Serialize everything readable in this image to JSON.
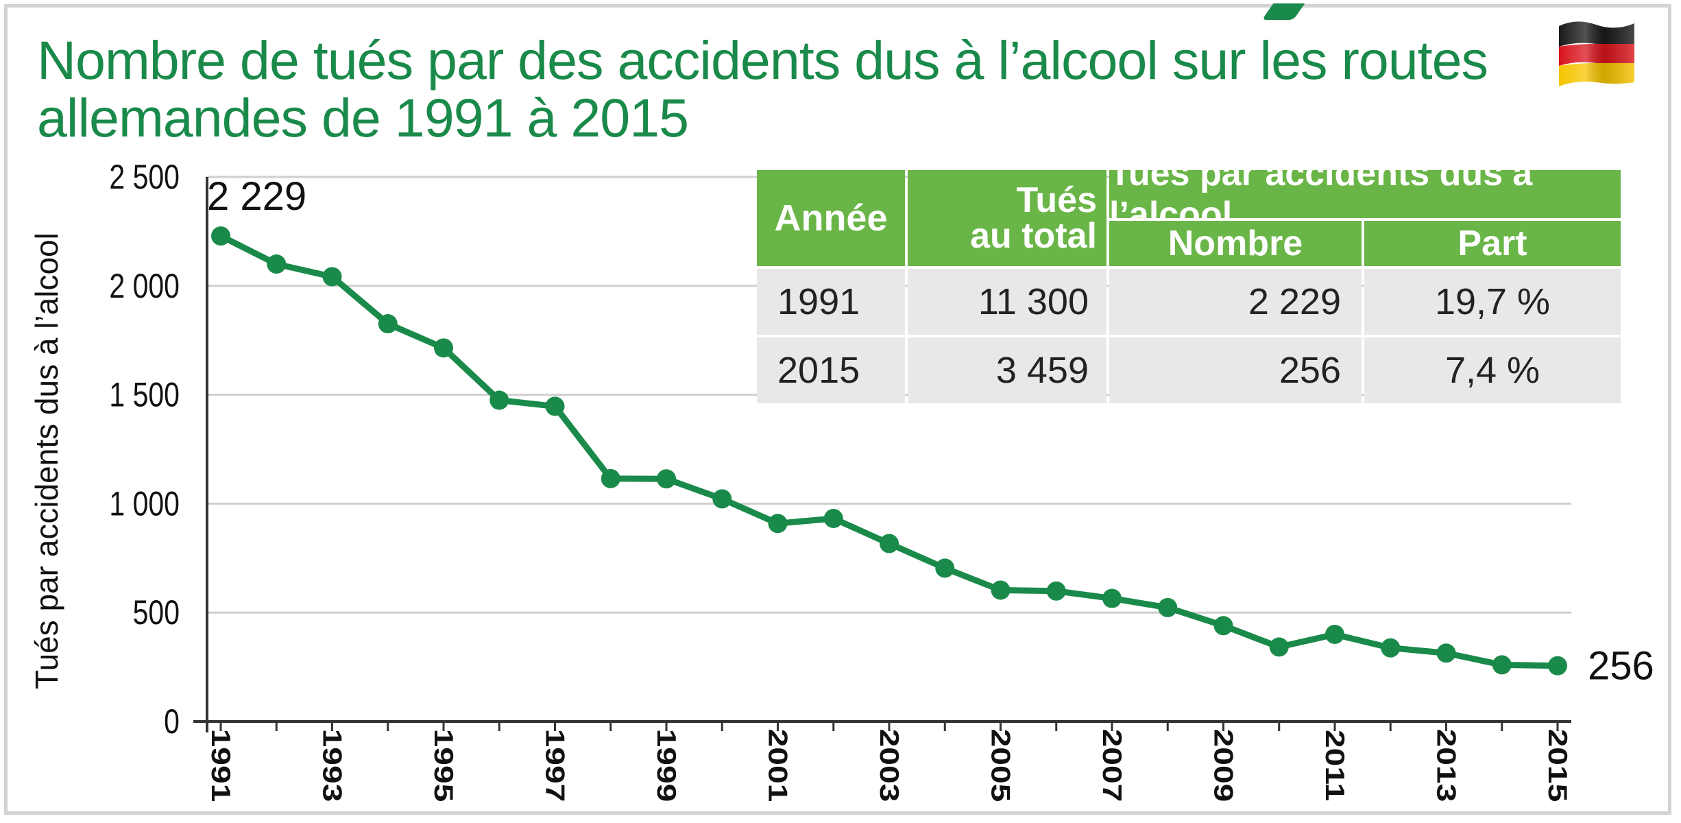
{
  "title": {
    "line1": "Nombre de tués par des accidents dus à l’alcool sur les routes",
    "line2": "allemandes de 1991 à 2015"
  },
  "flag_icon": "germany-flag-icon",
  "colors": {
    "line": "#1a8a4a",
    "title": "#1a8a4a",
    "table_header": "#6ab547",
    "table_row": "#e8e8e8",
    "grid": "#cfcfcf",
    "flag_black": "#1a1a1a",
    "flag_red": "#d9141c",
    "flag_gold": "#f5c400"
  },
  "chart_data": {
    "type": "line",
    "ylabel": "Tués par accidents dus à l’alcool",
    "xlabel": "",
    "x": [
      1991,
      1992,
      1993,
      1994,
      1995,
      1996,
      1997,
      1998,
      1999,
      2000,
      2001,
      2002,
      2003,
      2004,
      2005,
      2006,
      2007,
      2008,
      2009,
      2010,
      2011,
      2012,
      2013,
      2014,
      2015
    ],
    "values": [
      2229,
      2100,
      2042,
      1826,
      1715,
      1475,
      1447,
      1115,
      1114,
      1022,
      909,
      932,
      817,
      704,
      603,
      599,
      565,
      523,
      440,
      342,
      400,
      338,
      314,
      260,
      256
    ],
    "ylim": [
      0,
      2500
    ],
    "yticks": [
      0,
      500,
      1000,
      1500,
      2000,
      2500
    ],
    "ytick_labels": [
      "0",
      "500",
      "1 000",
      "1 500",
      "2 000",
      "2 500"
    ],
    "xtick_labels": [
      "1991",
      "1993",
      "1995",
      "1997",
      "1999",
      "2001",
      "2003",
      "2005",
      "2007",
      "2009",
      "2011",
      "2013",
      "2015"
    ],
    "grid": true,
    "annotations": [
      {
        "label": "2 229",
        "x": 1991,
        "y": 2229
      },
      {
        "label": "256",
        "x": 2015,
        "y": 256
      }
    ]
  },
  "table": {
    "headers": {
      "year": "Année",
      "total_line1": "Tués",
      "total_line2": "au total",
      "group": "Tués par accidents dus à l’alcool",
      "count": "Nombre",
      "share": "Part"
    },
    "rows": [
      {
        "year": "1991",
        "total": "11 300",
        "count": "2 229",
        "share": "19,7 %"
      },
      {
        "year": "2015",
        "total": "3 459",
        "count": "256",
        "share": "7,4 %"
      }
    ]
  }
}
